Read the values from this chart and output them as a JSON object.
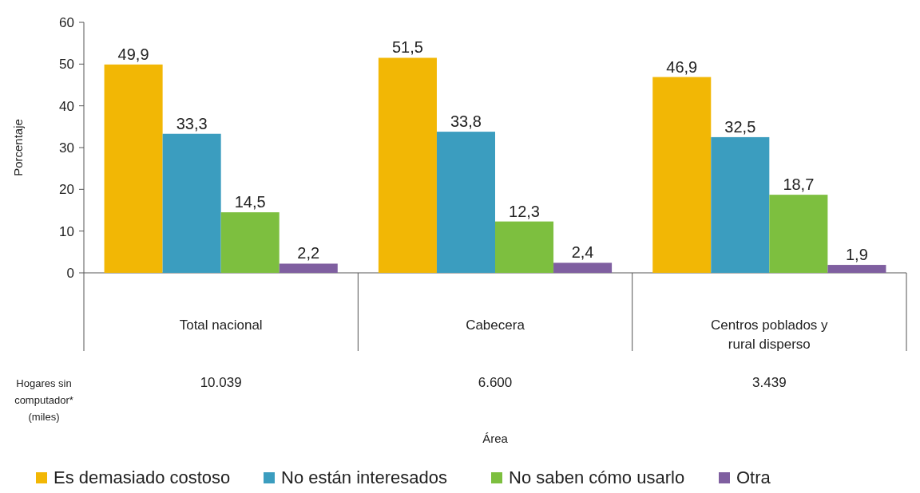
{
  "chart_data": {
    "type": "bar",
    "ylabel": "Porcentaje",
    "categories": [
      "Total nacional",
      "Cabecera",
      "Centros poblados y rural disperso"
    ],
    "series": [
      {
        "name": "Es demasiado costoso",
        "color": "#f2b705",
        "values": [
          49.9,
          51.5,
          46.9
        ],
        "value_labels": [
          "49,9",
          "51,5",
          "46,9"
        ]
      },
      {
        "name": "No están interesados",
        "color": "#3b9dbf",
        "values": [
          33.3,
          33.8,
          32.5
        ],
        "value_labels": [
          "33,3",
          "33,8",
          "32,5"
        ]
      },
      {
        "name": "No saben cómo usarlo",
        "color": "#7dbf3f",
        "values": [
          14.5,
          12.3,
          18.7
        ],
        "value_labels": [
          "14,5",
          "12,3",
          "18,7"
        ]
      },
      {
        "name": "Otra",
        "color": "#7f5fa0",
        "values": [
          2.2,
          2.4,
          1.9
        ],
        "value_labels": [
          "2,2",
          "2,4",
          "1,9"
        ]
      }
    ],
    "ylim": [
      0,
      60
    ],
    "yticks": [
      0,
      10,
      20,
      30,
      40,
      50,
      60
    ],
    "legend": "bottom",
    "annotations": [
      "Hogares sin computador* (miles)",
      "10.039",
      "6.600",
      "3.439",
      "Área"
    ]
  }
}
